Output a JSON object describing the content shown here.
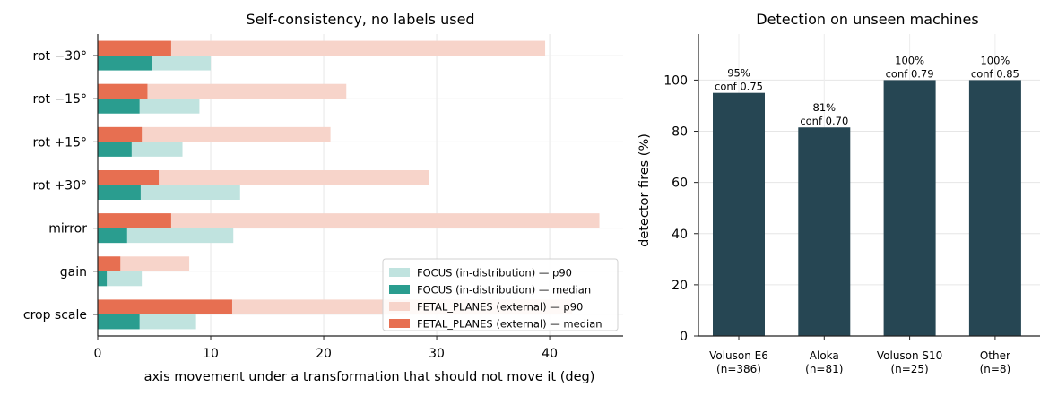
{
  "chart_data": [
    {
      "type": "bar",
      "orientation": "horizontal",
      "title": "Self-consistency, no labels used",
      "xlabel": "axis movement under a transformation that should not move it (deg)",
      "ylabel": "",
      "xlim": [
        0,
        46.5
      ],
      "xticks": [
        0,
        10,
        20,
        30,
        40
      ],
      "grid": true,
      "legend_position": "lower-right",
      "categories": [
        "rot −30°",
        "rot −15°",
        "rot +15°",
        "rot +30°",
        "mirror",
        "gain",
        "crop scale"
      ],
      "series": [
        {
          "name": "FOCUS (in-distribution) — p90",
          "color": "#c0e3df",
          "values": [
            10.0,
            9.0,
            7.5,
            12.6,
            12.0,
            3.9,
            8.7
          ]
        },
        {
          "name": "FOCUS (in-distribution) — median",
          "color": "#2a9d8f",
          "values": [
            4.8,
            3.7,
            3.0,
            3.8,
            2.6,
            0.8,
            3.7
          ]
        },
        {
          "name": "FETAL_PLANES (external) — p90",
          "color": "#f7d4ca",
          "values": [
            39.6,
            22.0,
            20.6,
            29.3,
            44.4,
            8.1,
            42.0
          ]
        },
        {
          "name": "FETAL_PLANES (external) — median",
          "color": "#e76f51",
          "values": [
            6.5,
            4.4,
            3.9,
            5.4,
            6.5,
            2.0,
            11.9
          ]
        }
      ]
    },
    {
      "type": "bar",
      "title": "Detection on unseen machines",
      "xlabel": "",
      "ylabel": "detector fires (%)",
      "ylim": [
        0,
        118
      ],
      "yticks": [
        0,
        20,
        40,
        60,
        80,
        100
      ],
      "grid": true,
      "color": "#264653",
      "categories": [
        "Voluson E6\n(n=386)",
        "Aloka\n(n=81)",
        "Voluson S10\n(n=25)",
        "Other\n(n=8)"
      ],
      "values": [
        95,
        81.5,
        100,
        100
      ],
      "annotations": [
        "95%\nconf 0.75",
        "81%\nconf 0.70",
        "100%\nconf 0.79",
        "100%\nconf 0.85"
      ]
    }
  ]
}
